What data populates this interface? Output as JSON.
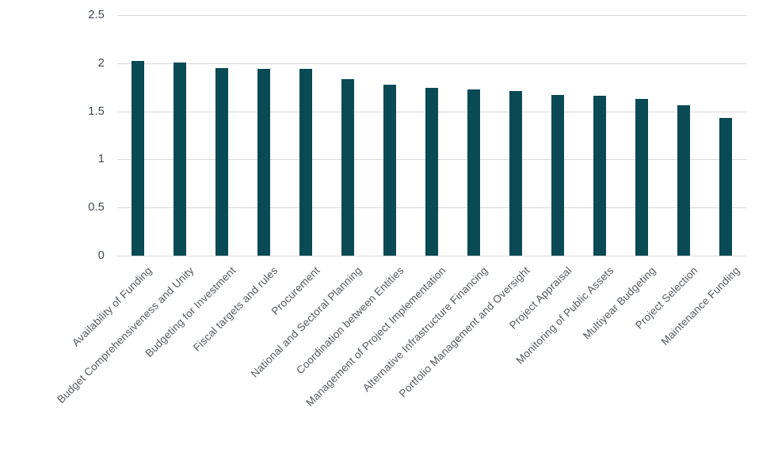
{
  "chart_data": {
    "type": "bar",
    "title": "",
    "xlabel": "",
    "ylabel": "",
    "categories": [
      "Availability of Funding",
      "Budget Comprehensiveness and Unity",
      "Budgeting for Investment",
      "Fiscal targets and rules",
      "Procurement",
      "National and Sectoral Planning",
      "Coordination between Entities",
      "Management of Project Implementation",
      "Alternative Infrastructure Financing",
      "Portfolio Management and Oversight",
      "Project Appraisal",
      "Monitoring of Public Assets",
      "Multiyear Budgeting",
      "Project Selection",
      "Maintenance Funding"
    ],
    "values": [
      2.02,
      2.01,
      1.95,
      1.94,
      1.94,
      1.83,
      1.78,
      1.74,
      1.73,
      1.71,
      1.67,
      1.66,
      1.63,
      1.56,
      1.43
    ],
    "ylim": [
      0,
      2.5
    ],
    "yticks": [
      0,
      0.5,
      1,
      1.5,
      2,
      2.5
    ],
    "ytick_labels": [
      "0",
      "0.5",
      "1",
      "1.5",
      "2",
      "2.5"
    ],
    "grid": true,
    "legend": false,
    "bar_color": "#094a55",
    "gridline_color": "#d9d9d9",
    "ytick_color": "#3f4650",
    "xtick_color": "#54585d",
    "background_color": "#ffffff"
  }
}
